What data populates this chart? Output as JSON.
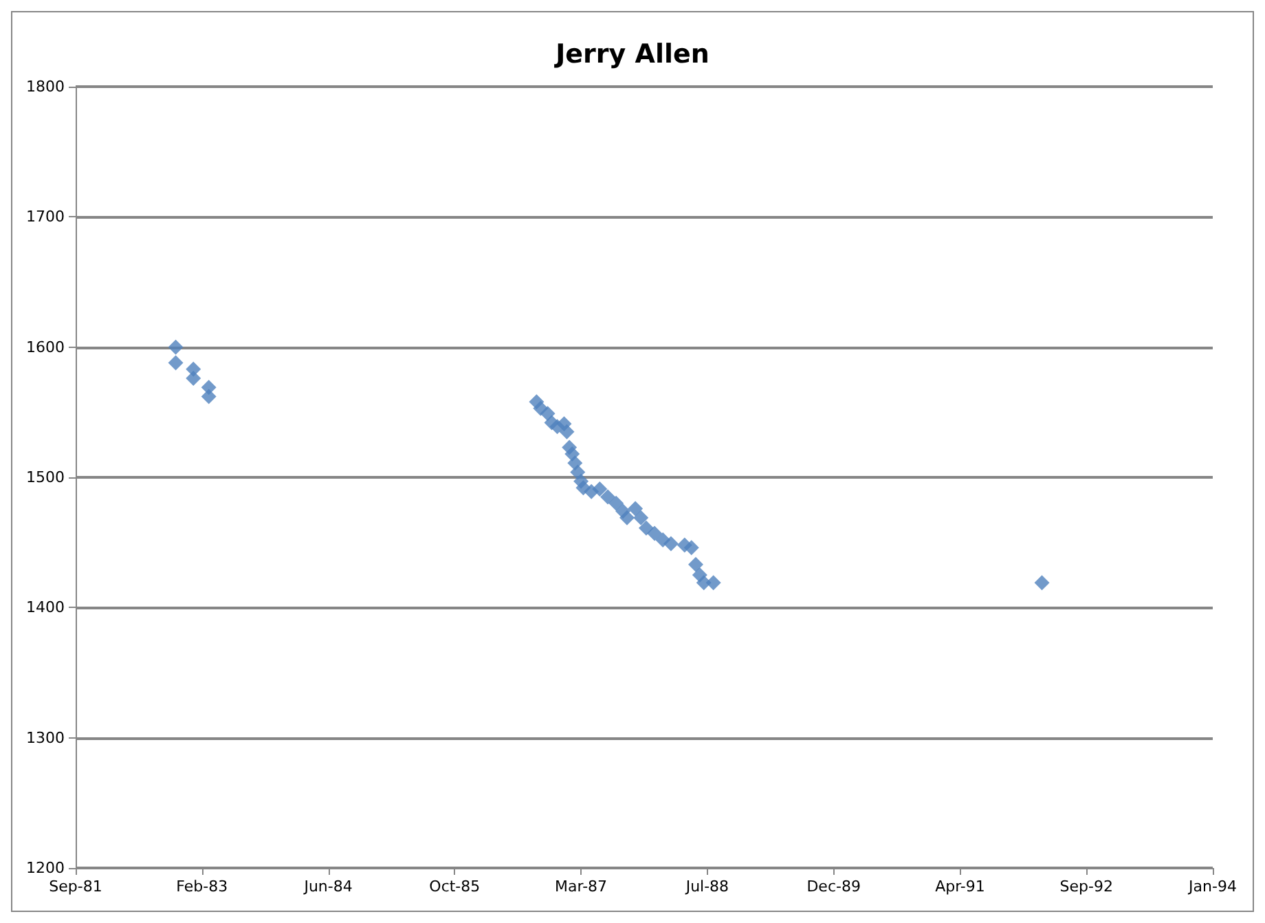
{
  "chart_data": {
    "type": "scatter",
    "title": "Jerry Allen",
    "x": [
      "1982-10-21",
      "1982-10-21",
      "1982-12-30",
      "1982-12-30",
      "1983-03-01",
      "1983-03-01",
      "1986-09-18",
      "1986-10-04",
      "1986-11-01",
      "1986-11-17",
      "1986-12-09",
      "1987-01-05",
      "1987-01-16",
      "1987-01-26",
      "1987-02-06",
      "1987-02-17",
      "1987-02-28",
      "1987-03-13",
      "1987-03-22",
      "1987-04-23",
      "1987-05-26",
      "1987-06-27",
      "1987-07-30",
      "1987-08-26",
      "1987-09-11",
      "1987-10-14",
      "1987-11-05",
      "1987-11-26",
      "1987-12-29",
      "1988-01-31",
      "1988-03-03",
      "1988-04-26",
      "1988-05-23",
      "1988-06-09",
      "1988-06-25",
      "1988-07-11",
      "1988-08-18",
      "1992-03-10"
    ],
    "values": [
      1600,
      1588,
      1583,
      1576,
      1569,
      1562,
      1558,
      1553,
      1549,
      1542,
      1539,
      1541,
      1535,
      1523,
      1518,
      1511,
      1504,
      1497,
      1492,
      1489,
      1491,
      1485,
      1480,
      1474,
      1469,
      1476,
      1469,
      1461,
      1457,
      1452,
      1449,
      1448,
      1446,
      1433,
      1425,
      1419,
      1419,
      1419
    ],
    "color": "#4f81bd",
    "marker": "diamond",
    "grid": "y",
    "xlim": [
      "1981-09-20",
      "1994-01-15"
    ],
    "xticks": [
      {
        "value": "1981-09-20",
        "label": "Sep-81"
      },
      {
        "value": "1983-02-02",
        "label": "Feb-83"
      },
      {
        "value": "1984-06-16",
        "label": "Jun-84"
      },
      {
        "value": "1985-10-29",
        "label": "Oct-85"
      },
      {
        "value": "1987-03-13",
        "label": "Mar-87"
      },
      {
        "value": "1988-07-25",
        "label": "Jul-88"
      },
      {
        "value": "1989-12-07",
        "label": "Dec-89"
      },
      {
        "value": "1991-04-21",
        "label": "Apr-91"
      },
      {
        "value": "1992-09-02",
        "label": "Sep-92"
      },
      {
        "value": "1994-01-15",
        "label": "Jan-94"
      }
    ],
    "ylim": [
      1200,
      1800
    ],
    "yticks": [
      1200,
      1300,
      1400,
      1500,
      1600,
      1700,
      1800
    ]
  }
}
